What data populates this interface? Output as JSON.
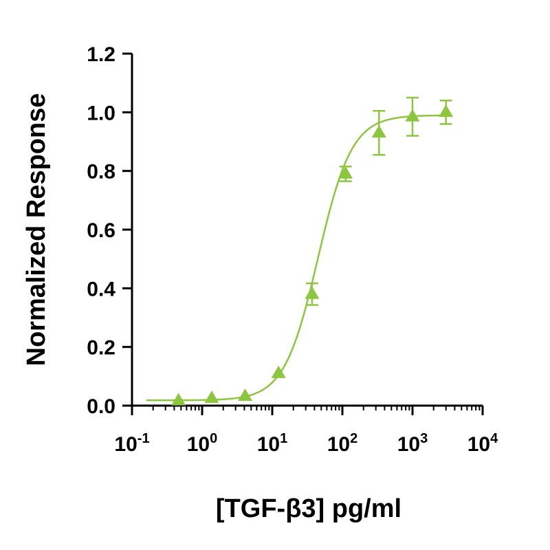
{
  "chart_data": {
    "type": "scatter",
    "title": "",
    "xlabel": "[TGF-β3] pg/ml",
    "ylabel": "Normalized Response",
    "x_scale": "log10",
    "xlim": [
      0.1,
      10000
    ],
    "ylim": [
      0,
      1.2
    ],
    "x_tick_labels": [
      {
        "base": "10",
        "exp": "-1",
        "value": 0.1
      },
      {
        "base": "10",
        "exp": "0",
        "value": 1
      },
      {
        "base": "10",
        "exp": "1",
        "value": 10
      },
      {
        "base": "10",
        "exp": "2",
        "value": 100
      },
      {
        "base": "10",
        "exp": "3",
        "value": 1000
      },
      {
        "base": "10",
        "exp": "4",
        "value": 10000
      }
    ],
    "y_ticks": [
      {
        "label": "0.0",
        "value": 0.0
      },
      {
        "label": "0.2",
        "value": 0.2
      },
      {
        "label": "0.4",
        "value": 0.4
      },
      {
        "label": "0.6",
        "value": 0.6
      },
      {
        "label": "0.8",
        "value": 0.8
      },
      {
        "label": "1.0",
        "value": 1.0
      },
      {
        "label": "1.2",
        "value": 1.2
      }
    ],
    "grid": false,
    "legend": "none",
    "color": "#8cc63f",
    "marker": "triangle",
    "series": [
      {
        "x": [
          0.46,
          1.37,
          4.1,
          12.3,
          37,
          111,
          333,
          1000,
          3000
        ],
        "y": [
          0.017,
          0.025,
          0.032,
          0.11,
          0.38,
          0.79,
          0.93,
          0.985,
          1.0
        ],
        "error": [
          0.0,
          0.0,
          0.0,
          0.0,
          0.037,
          0.025,
          0.075,
          0.065,
          0.04
        ]
      }
    ],
    "fit_curve": {
      "model": "4PL",
      "bottom": 0.018,
      "top": 0.99,
      "ec50": 45,
      "hill": 1.8,
      "x_range": [
        0.16,
        3000
      ]
    }
  }
}
